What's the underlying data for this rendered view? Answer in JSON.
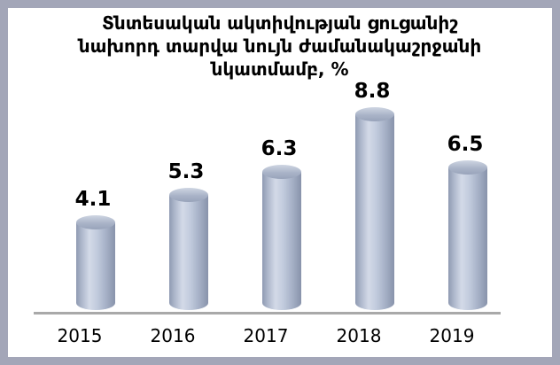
{
  "panel": {
    "background": "#ffffff",
    "border_color": "#a3a6b8"
  },
  "chart_data": {
    "type": "bar",
    "subtype": "3d-cylinder",
    "title": "Տնտեսական ակտիվության ցուցանիշ նախորդ տարվա նույն ժամանակաշրջանի նկատմամբ, %",
    "title_lines": [
      "Տնտեսական ակտիվության ցուցանիշ",
      "նախորդ տարվա նույն ժամանակաշրջանի",
      "նկատմամբ, %"
    ],
    "categories": [
      "2015",
      "2016",
      "2017",
      "2018",
      "2019"
    ],
    "values": [
      4.1,
      5.3,
      6.3,
      8.8,
      6.5
    ],
    "data_labels": [
      "4.1",
      "5.3",
      "6.3",
      "8.8",
      "6.5"
    ],
    "xlabel": "",
    "ylabel": "",
    "ylim": [
      0,
      9.5
    ],
    "grid": false,
    "legend": false,
    "data_labels_shown": true,
    "bar_color_light": "#d3dae8",
    "bar_color_mid": "#b9c3d7",
    "bar_color_dark": "#8e99b1",
    "axis_line_color": "#a9a9a9",
    "text_color": "#000000"
  }
}
